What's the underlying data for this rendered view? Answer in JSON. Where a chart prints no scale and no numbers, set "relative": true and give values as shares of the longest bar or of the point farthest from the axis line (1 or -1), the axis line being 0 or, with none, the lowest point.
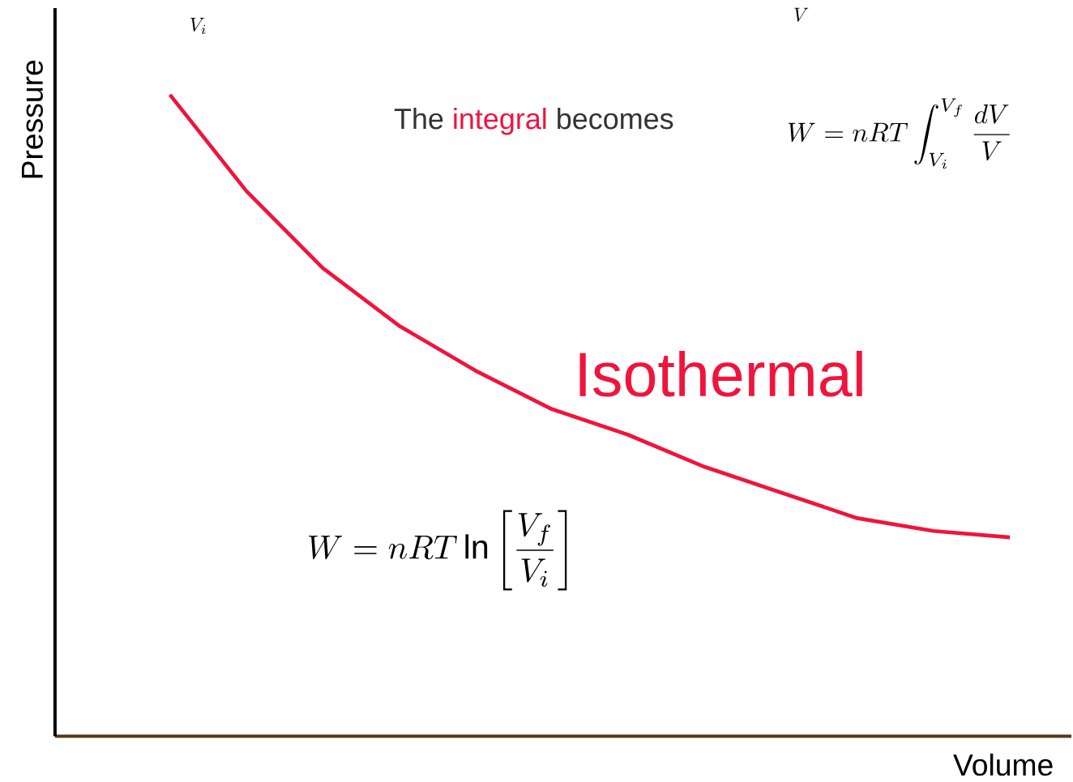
{
  "chart_data": {
    "type": "line",
    "relative": true,
    "xlabel": "Volume",
    "ylabel": "Pressure",
    "categories": [
      null,
      null,
      null,
      null,
      null,
      null,
      null,
      null,
      null,
      null,
      null,
      null
    ],
    "series": [
      {
        "name": "Isothermal",
        "color": "#f0143c",
        "values": [
          1,
          0.85,
          0.73,
          0.64,
          0.57,
          0.51,
          0.47,
          0.42,
          0.38,
          0.34,
          0.32,
          0.31
        ]
      }
    ],
    "annotations": [
      "The",
      "integral",
      "becomes",
      "W = nRT\\int_{V_i}^{V_f}\\frac{dV}{V}",
      "W = nRT\\ln\\left[\\frac{V_f}{V_i}\\right]",
      "V_i",
      "V"
    ]
  }
}
